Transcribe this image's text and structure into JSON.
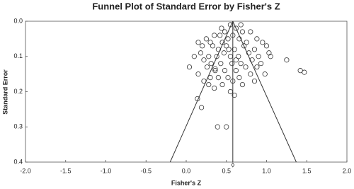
{
  "chart_data": {
    "type": "scatter",
    "title": "Funnel Plot of Standard Error by Fisher's Z",
    "x_label": "Fisher's Z",
    "y_label": "Standard Error",
    "xlim": [
      -2.0,
      2.0
    ],
    "ylim": [
      0.4,
      0.0
    ],
    "xticks": [
      {
        "value": -2.0,
        "label": "-2.0"
      },
      -1.5,
      {
        "value": -1.0,
        "label": "-1.0"
      },
      -0.5,
      {
        "value": 0,
        "label": "0.0"
      },
      0.5,
      {
        "value": 1.0,
        "label": "1.0"
      },
      1.5,
      {
        "value": 2.0,
        "label": "2.0"
      }
    ],
    "yticks": [
      {
        "value": 0,
        "label": "0.0"
      },
      0.1,
      0.2,
      0.3,
      0.4
    ],
    "summary_effect": 0.58,
    "funnel": {
      "left_base": -0.2,
      "right_base": 1.37,
      "base_se": 0.4
    },
    "color": "#333333",
    "series": [
      {
        "name": "Studies",
        "x": [
          0.55,
          0.62,
          0.48,
          0.7,
          0.35,
          0.42,
          0.58,
          0.8,
          0.25,
          0.3,
          0.45,
          0.52,
          0.66,
          0.75,
          0.88,
          0.2,
          0.33,
          0.4,
          0.5,
          0.6,
          0.72,
          0.85,
          0.95,
          0.18,
          0.28,
          0.38,
          0.47,
          0.55,
          0.65,
          0.78,
          0.9,
          1.0,
          0.22,
          0.31,
          0.43,
          0.57,
          0.68,
          0.82,
          0.93,
          0.26,
          0.36,
          0.48,
          0.62,
          0.74,
          0.88,
          0.15,
          0.3,
          0.4,
          0.52,
          0.66,
          0.8,
          0.98,
          0.22,
          0.45,
          0.58,
          0.7,
          0.85,
          0.35,
          0.55,
          0.6,
          0.28,
          0.15,
          0.1,
          1.05,
          0.62,
          0.53,
          0.44,
          0.68,
          0.04,
          1.25,
          1.42,
          1.47,
          0.14,
          0.19,
          0.39,
          0.5,
          0.36,
          1.03
        ],
        "values": [
          0.01,
          0.02,
          0.03,
          0.03,
          0.04,
          0.04,
          0.04,
          0.03,
          0.05,
          0.06,
          0.06,
          0.05,
          0.05,
          0.06,
          0.05,
          0.07,
          0.07,
          0.08,
          0.07,
          0.08,
          0.07,
          0.08,
          0.06,
          0.09,
          0.1,
          0.1,
          0.09,
          0.1,
          0.1,
          0.09,
          0.1,
          0.07,
          0.11,
          0.12,
          0.12,
          0.12,
          0.12,
          0.11,
          0.12,
          0.13,
          0.14,
          0.14,
          0.14,
          0.13,
          0.13,
          0.15,
          0.16,
          0.16,
          0.16,
          0.16,
          0.15,
          0.15,
          0.17,
          0.18,
          0.17,
          0.18,
          0.17,
          0.19,
          0.2,
          0.21,
          0.18,
          0.06,
          0.1,
          0.1,
          0.11,
          0.08,
          0.02,
          0.01,
          0.13,
          0.11,
          0.14,
          0.145,
          0.22,
          0.245,
          0.3,
          0.3,
          0.135,
          0.09
        ]
      }
    ]
  }
}
